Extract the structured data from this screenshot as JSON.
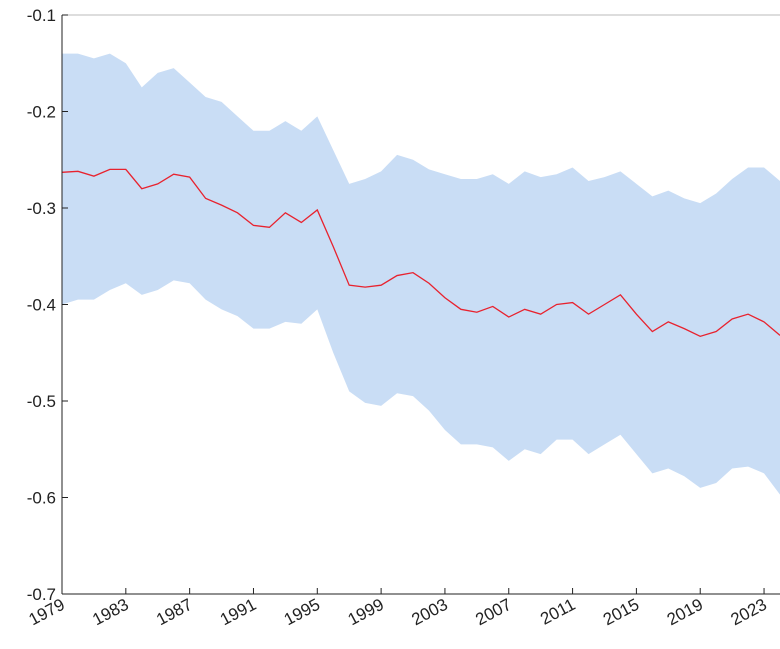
{
  "chart_data": {
    "type": "line",
    "x": [
      1979,
      1980,
      1981,
      1982,
      1983,
      1984,
      1985,
      1986,
      1987,
      1988,
      1989,
      1990,
      1991,
      1992,
      1993,
      1994,
      1995,
      1996,
      1997,
      1998,
      1999,
      2000,
      2001,
      2002,
      2003,
      2004,
      2005,
      2006,
      2007,
      2008,
      2009,
      2010,
      2011,
      2012,
      2013,
      2014,
      2015,
      2016,
      2017,
      2018,
      2019,
      2020,
      2021,
      2022,
      2023,
      2024
    ],
    "line": {
      "color": "#e8222e",
      "values": [
        -0.263,
        -0.262,
        -0.267,
        -0.26,
        -0.26,
        -0.28,
        -0.275,
        -0.265,
        -0.268,
        -0.29,
        -0.297,
        -0.305,
        -0.318,
        -0.32,
        -0.305,
        -0.315,
        -0.302,
        -0.34,
        -0.38,
        -0.382,
        -0.38,
        -0.37,
        -0.367,
        -0.378,
        -0.393,
        -0.405,
        -0.408,
        -0.402,
        -0.413,
        -0.405,
        -0.41,
        -0.4,
        -0.398,
        -0.41,
        -0.4,
        -0.39,
        -0.41,
        -0.428,
        -0.418,
        -0.425,
        -0.433,
        -0.428,
        -0.415,
        -0.41,
        -0.418,
        -0.432
      ]
    },
    "band": {
      "color": "#c9ddf5",
      "upper": [
        -0.14,
        -0.14,
        -0.145,
        -0.14,
        -0.15,
        -0.175,
        -0.16,
        -0.155,
        -0.17,
        -0.185,
        -0.19,
        -0.205,
        -0.22,
        -0.22,
        -0.21,
        -0.22,
        -0.205,
        -0.24,
        -0.275,
        -0.27,
        -0.262,
        -0.245,
        -0.25,
        -0.26,
        -0.265,
        -0.27,
        -0.27,
        -0.265,
        -0.275,
        -0.262,
        -0.268,
        -0.265,
        -0.258,
        -0.272,
        -0.268,
        -0.262,
        -0.275,
        -0.288,
        -0.282,
        -0.29,
        -0.295,
        -0.285,
        -0.27,
        -0.258,
        -0.258,
        -0.272
      ],
      "lower": [
        -0.4,
        -0.395,
        -0.395,
        -0.385,
        -0.378,
        -0.39,
        -0.385,
        -0.375,
        -0.378,
        -0.395,
        -0.405,
        -0.412,
        -0.425,
        -0.425,
        -0.418,
        -0.42,
        -0.405,
        -0.45,
        -0.49,
        -0.502,
        -0.505,
        -0.492,
        -0.495,
        -0.51,
        -0.53,
        -0.545,
        -0.545,
        -0.548,
        -0.562,
        -0.55,
        -0.555,
        -0.54,
        -0.54,
        -0.555,
        -0.545,
        -0.535,
        -0.555,
        -0.575,
        -0.57,
        -0.578,
        -0.59,
        -0.585,
        -0.57,
        -0.568,
        -0.575,
        -0.597
      ]
    },
    "xlim": [
      1979,
      2024
    ],
    "xticks": [
      1979,
      1983,
      1987,
      1991,
      1995,
      1999,
      2003,
      2007,
      2011,
      2015,
      2019,
      2023
    ],
    "ylim": [
      -0.7,
      -0.1
    ],
    "yticks": [
      -0.1,
      -0.2,
      -0.3,
      -0.4,
      -0.5,
      -0.6,
      -0.7
    ]
  }
}
